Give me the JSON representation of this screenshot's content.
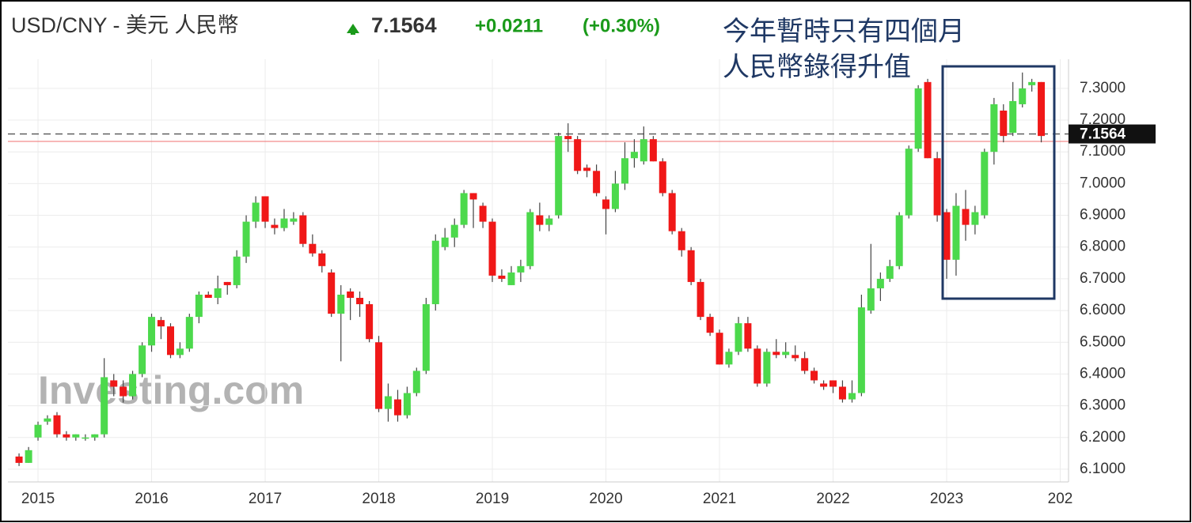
{
  "chart_data": {
    "type": "candlestick",
    "title": "USD/CNY - 美元 人民幣",
    "last_price": 7.1564,
    "change": "+0.0211",
    "change_percent": "(+0.30%)",
    "annotation": [
      "今年暫時只有四個月",
      "人民幣錄得升值"
    ],
    "watermark": "Investing.com",
    "up_color": "#4cd94c",
    "down_color": "#f01818",
    "reference_line": 7.133,
    "reference_color": "#f07070",
    "grid": true,
    "xlim": [
      2014.735,
      2024.073
    ],
    "xticks": [
      2015,
      2016,
      2017,
      2018,
      2019,
      2020,
      2021,
      2022,
      2023,
      {
        "value": 2024,
        "label": "202"
      }
    ],
    "ylim": [
      6.06,
      7.342
    ],
    "yticks": [
      {
        "value": 6.1,
        "label": "6.1000"
      },
      {
        "value": 6.2,
        "label": "6.2000"
      },
      {
        "value": 6.3,
        "label": "6.3000"
      },
      {
        "value": 6.4,
        "label": "6.4000"
      },
      {
        "value": 6.5,
        "label": "6.5000"
      },
      {
        "value": 6.6,
        "label": "6.6000"
      },
      {
        "value": 6.7,
        "label": "6.7000"
      },
      {
        "value": 6.8,
        "label": "6.8000"
      },
      {
        "value": 6.9,
        "label": "6.9000"
      },
      {
        "value": 7.0,
        "label": "7.0000"
      },
      {
        "value": 7.1,
        "label": "7.1000"
      },
      {
        "value": 7.2,
        "label": "7.2000"
      },
      {
        "value": 7.3,
        "label": "7.3000"
      }
    ],
    "x": [
      2014.833,
      2014.917,
      2015.0,
      2015.083,
      2015.167,
      2015.25,
      2015.333,
      2015.417,
      2015.5,
      2015.583,
      2015.667,
      2015.75,
      2015.833,
      2015.917,
      2016.0,
      2016.083,
      2016.167,
      2016.25,
      2016.333,
      2016.417,
      2016.5,
      2016.583,
      2016.667,
      2016.75,
      2016.833,
      2016.917,
      2017.0,
      2017.083,
      2017.167,
      2017.25,
      2017.333,
      2017.417,
      2017.5,
      2017.583,
      2017.667,
      2017.75,
      2017.833,
      2017.917,
      2018.0,
      2018.083,
      2018.167,
      2018.25,
      2018.333,
      2018.417,
      2018.5,
      2018.583,
      2018.667,
      2018.75,
      2018.833,
      2018.917,
      2019.0,
      2019.083,
      2019.167,
      2019.25,
      2019.333,
      2019.417,
      2019.5,
      2019.583,
      2019.667,
      2019.75,
      2019.833,
      2019.917,
      2020.0,
      2020.083,
      2020.167,
      2020.25,
      2020.333,
      2020.417,
      2020.5,
      2020.583,
      2020.667,
      2020.75,
      2020.833,
      2020.917,
      2021.0,
      2021.083,
      2021.167,
      2021.25,
      2021.333,
      2021.417,
      2021.5,
      2021.583,
      2021.667,
      2021.75,
      2021.833,
      2021.917,
      2022.0,
      2022.083,
      2022.167,
      2022.25,
      2022.333,
      2022.417,
      2022.5,
      2022.583,
      2022.667,
      2022.75,
      2022.833,
      2022.917,
      2023.0,
      2023.083,
      2023.167,
      2023.25,
      2023.333,
      2023.417,
      2023.5,
      2023.583,
      2023.667,
      2023.75,
      2023.833
    ],
    "open": [
      6.14,
      6.12,
      6.2,
      6.25,
      6.27,
      6.21,
      6.2,
      6.2,
      6.2,
      6.21,
      6.38,
      6.36,
      6.33,
      6.4,
      6.49,
      6.57,
      6.55,
      6.46,
      6.48,
      6.58,
      6.65,
      6.64,
      6.69,
      6.68,
      6.77,
      6.88,
      6.96,
      6.87,
      6.86,
      6.88,
      6.9,
      6.81,
      6.78,
      6.72,
      6.59,
      6.66,
      6.64,
      6.62,
      6.5,
      6.29,
      6.32,
      6.27,
      6.34,
      6.41,
      6.62,
      6.8,
      6.83,
      6.87,
      6.97,
      6.93,
      6.88,
      6.71,
      6.68,
      6.72,
      6.74,
      6.9,
      6.87,
      6.9,
      7.15,
      7.14,
      7.05,
      7.04,
      6.95,
      6.92,
      7.0,
      7.08,
      7.07,
      7.14,
      7.07,
      6.97,
      6.85,
      6.79,
      6.69,
      6.58,
      6.53,
      6.43,
      6.47,
      6.56,
      6.48,
      6.37,
      6.47,
      6.46,
      6.46,
      6.45,
      6.41,
      6.37,
      6.38,
      6.36,
      6.32,
      6.34,
      6.6,
      6.67,
      6.7,
      6.74,
      6.9,
      7.11,
      7.32,
      7.08,
      6.91,
      6.76,
      6.92,
      6.87,
      6.9,
      7.1,
      7.23,
      7.16,
      7.25,
      7.31,
      7.32
    ],
    "high": [
      6.15,
      6.17,
      6.25,
      6.27,
      6.28,
      6.22,
      6.21,
      6.21,
      6.21,
      6.45,
      6.4,
      6.38,
      6.41,
      6.5,
      6.59,
      6.58,
      6.56,
      6.5,
      6.59,
      6.66,
      6.66,
      6.71,
      6.69,
      6.79,
      6.9,
      6.96,
      6.96,
      6.89,
      6.92,
      6.91,
      6.91,
      6.84,
      6.79,
      6.73,
      6.68,
      6.67,
      6.66,
      6.63,
      6.52,
      6.37,
      6.35,
      6.36,
      6.42,
      6.64,
      6.84,
      6.86,
      6.89,
      6.98,
      6.97,
      6.94,
      6.89,
      6.73,
      6.74,
      6.76,
      6.92,
      6.94,
      6.9,
      7.16,
      7.19,
      7.15,
      7.06,
      7.06,
      6.96,
      7.04,
      7.13,
      7.14,
      7.18,
      7.15,
      7.08,
      6.98,
      6.86,
      6.8,
      6.7,
      6.59,
      6.54,
      6.48,
      6.58,
      6.58,
      6.49,
      6.48,
      6.51,
      6.5,
      6.49,
      6.47,
      6.42,
      6.38,
      6.38,
      6.38,
      6.38,
      6.65,
      6.81,
      6.72,
      6.76,
      6.91,
      7.12,
      7.31,
      7.33,
      7.1,
      6.92,
      6.97,
      6.98,
      6.93,
      7.11,
      7.27,
      7.25,
      7.32,
      7.35,
      7.33,
      7.32
    ],
    "low": [
      6.11,
      6.12,
      6.19,
      6.24,
      6.2,
      6.19,
      6.19,
      6.19,
      6.19,
      6.2,
      6.33,
      6.31,
      6.32,
      6.39,
      6.47,
      6.51,
      6.45,
      6.45,
      6.47,
      6.56,
      6.64,
      6.62,
      6.65,
      6.67,
      6.75,
      6.86,
      6.86,
      6.84,
      6.85,
      6.87,
      6.8,
      6.77,
      6.72,
      6.58,
      6.44,
      6.57,
      6.58,
      6.5,
      6.28,
      6.25,
      6.25,
      6.26,
      6.33,
      6.4,
      6.6,
      6.79,
      6.8,
      6.86,
      6.86,
      6.86,
      6.69,
      6.69,
      6.68,
      6.69,
      6.73,
      6.85,
      6.85,
      6.89,
      7.1,
      7.03,
      7.02,
      6.96,
      6.84,
      6.91,
      6.98,
      7.05,
      7.06,
      7.07,
      6.96,
      6.84,
      6.77,
      6.68,
      6.57,
      6.52,
      6.43,
      6.42,
      6.46,
      6.47,
      6.36,
      6.36,
      6.45,
      6.45,
      6.44,
      6.4,
      6.37,
      6.35,
      6.34,
      6.31,
      6.31,
      6.33,
      6.59,
      6.63,
      6.69,
      6.73,
      6.89,
      7.1,
      7.08,
      6.88,
      6.7,
      6.71,
      6.82,
      6.84,
      6.89,
      7.06,
      7.13,
      7.15,
      7.24,
      7.29,
      7.13
    ],
    "close": [
      6.12,
      6.16,
      6.24,
      6.26,
      6.21,
      6.2,
      6.21,
      6.2,
      6.21,
      6.39,
      6.36,
      6.33,
      6.4,
      6.49,
      6.58,
      6.55,
      6.46,
      6.48,
      6.58,
      6.65,
      6.64,
      6.67,
      6.68,
      6.77,
      6.88,
      6.94,
      6.88,
      6.86,
      6.89,
      6.89,
      6.81,
      6.78,
      6.74,
      6.59,
      6.65,
      6.64,
      6.62,
      6.51,
      6.29,
      6.33,
      6.27,
      6.34,
      6.41,
      6.62,
      6.82,
      6.83,
      6.87,
      6.97,
      6.95,
      6.88,
      6.71,
      6.7,
      6.72,
      6.74,
      6.91,
      6.87,
      6.89,
      7.15,
      7.14,
      7.04,
      7.04,
      6.97,
      6.92,
      7.0,
      7.08,
      7.1,
      7.14,
      7.07,
      6.97,
      6.85,
      6.79,
      6.69,
      6.58,
      6.53,
      6.43,
      6.47,
      6.56,
      6.48,
      6.37,
      6.47,
      6.46,
      6.47,
      6.45,
      6.41,
      6.38,
      6.36,
      6.36,
      6.32,
      6.34,
      6.61,
      6.67,
      6.7,
      6.74,
      6.9,
      7.11,
      7.3,
      7.08,
      6.9,
      6.76,
      6.93,
      6.87,
      6.91,
      7.1,
      7.25,
      7.15,
      7.26,
      7.3,
      7.32,
      7.15
    ]
  }
}
